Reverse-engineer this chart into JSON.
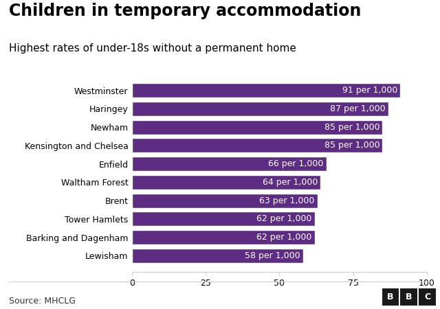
{
  "title": "Children in temporary accommodation",
  "subtitle": "Highest rates of under-18s without a permanent home",
  "categories": [
    "Lewisham",
    "Barking and Dagenham",
    "Tower Hamlets",
    "Brent",
    "Waltham Forest",
    "Enfield",
    "Kensington and Chelsea",
    "Newham",
    "Haringey",
    "Westminster"
  ],
  "values": [
    58,
    62,
    62,
    63,
    64,
    66,
    85,
    85,
    87,
    91
  ],
  "labels": [
    "58 per 1,000",
    "62 per 1,000",
    "62 per 1,000",
    "63 per 1,000",
    "64 per 1,000",
    "66 per 1,000",
    "85 per 1,000",
    "85 per 1,000",
    "87 per 1,000",
    "91 per 1,000"
  ],
  "bar_color": "#5c2d82",
  "background_color": "#ffffff",
  "text_color": "#000000",
  "bar_label_color": "#ffffff",
  "title_fontsize": 17,
  "subtitle_fontsize": 11,
  "label_fontsize": 9,
  "tick_fontsize": 9,
  "xlim": [
    0,
    100
  ],
  "xticks": [
    0,
    25,
    50,
    75,
    100
  ],
  "source_text": "Source: MHCLG",
  "bbc_letters": [
    "B",
    "B",
    "C"
  ]
}
